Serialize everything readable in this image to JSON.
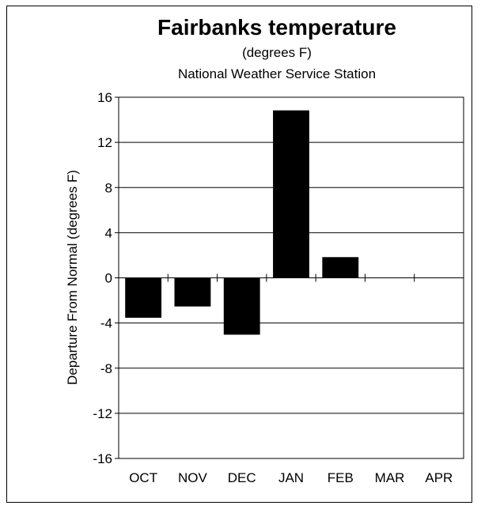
{
  "chart_data": {
    "type": "bar",
    "title": "Fairbanks temperature",
    "subtitle_lines": [
      "(degrees F)",
      "National Weather Service Station"
    ],
    "xlabel": "",
    "ylabel": "Departure From Normal (degrees F)",
    "categories": [
      "OCT",
      "NOV",
      "DEC",
      "JAN",
      "FEB",
      "MAR",
      "APR"
    ],
    "values": [
      -3.5,
      -2.5,
      -5.0,
      14.8,
      1.8,
      null,
      null
    ],
    "ylim": [
      -16,
      16
    ],
    "yticks": [
      16,
      12,
      8,
      4,
      0,
      -4,
      -8,
      -12,
      -16
    ],
    "ytick_labels": [
      "16",
      "12",
      "8",
      "4",
      "0",
      "-4",
      "-8",
      "-12",
      "-16"
    ],
    "grid": true,
    "bar_color": "#000000",
    "legend": "none"
  }
}
